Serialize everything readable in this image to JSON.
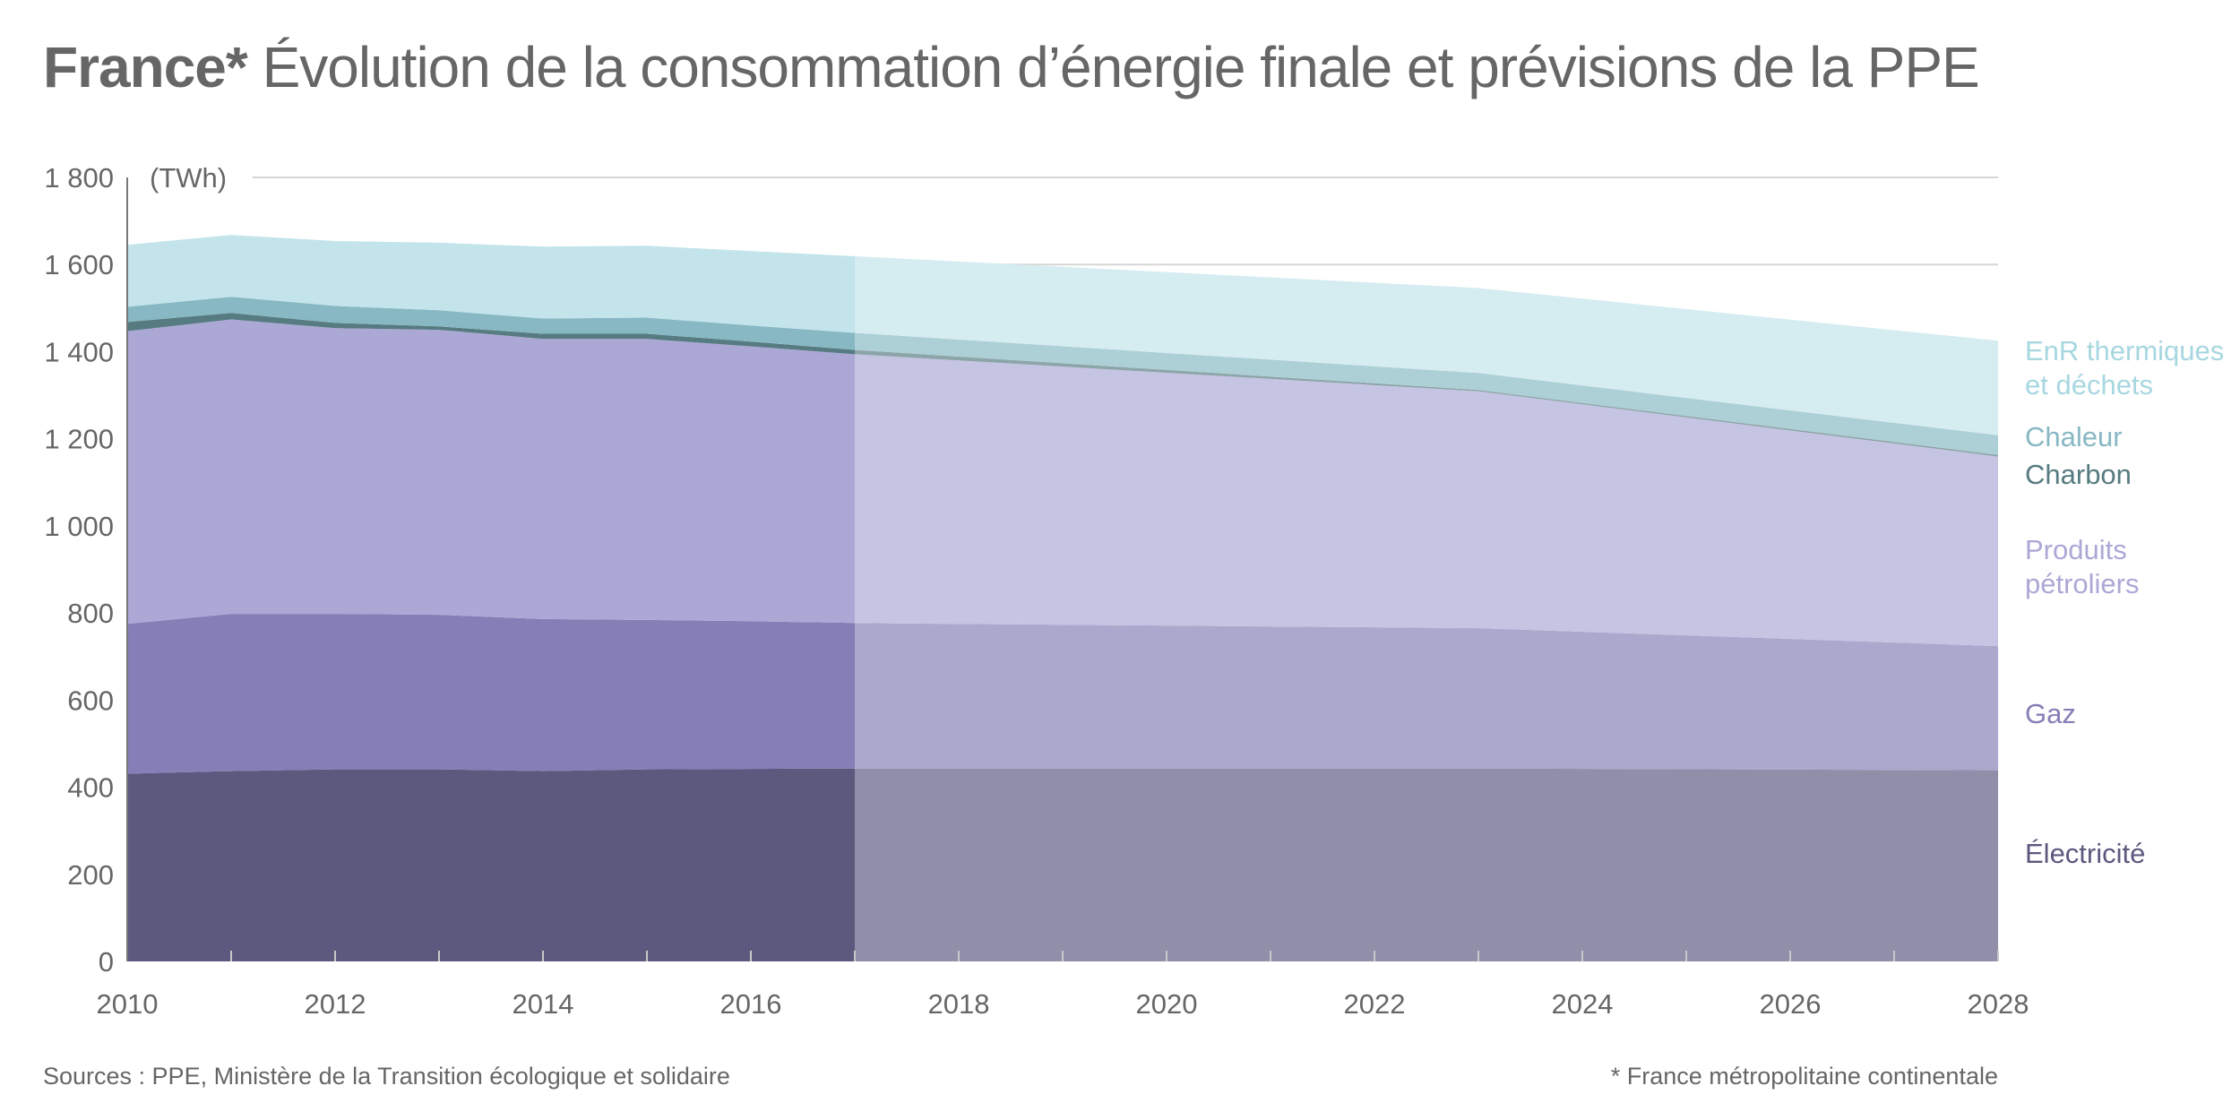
{
  "header": {
    "country": "France*",
    "title": "Évolution de la consommation d’énergie finale et prévisions de la PPE"
  },
  "footer": {
    "sources": "Sources : PPE, Ministère de la Transition écologique et solidaire",
    "note": "* France métropolitaine continentale"
  },
  "chart_data": {
    "type": "area",
    "stacked": true,
    "title": "France* Évolution de la consommation d’énergie finale et prévisions de la PPE",
    "xlabel": "",
    "ylabel": "(TWh)",
    "xlim": [
      2010,
      2028
    ],
    "ylim": [
      0,
      1800
    ],
    "x_ticks": [
      2010,
      2012,
      2014,
      2016,
      2018,
      2020,
      2022,
      2024,
      2026,
      2028
    ],
    "x_tick_labels": [
      "2010",
      "2012",
      "2014",
      "2016",
      "2018",
      "2020",
      "2022",
      "2024",
      "2026",
      "2028"
    ],
    "y_ticks": [
      0,
      200,
      400,
      600,
      800,
      1000,
      1200,
      1400,
      1600,
      1800
    ],
    "y_tick_labels": [
      "0",
      "200",
      "400",
      "600",
      "800",
      "1 000",
      "1 200",
      "1 400",
      "1 600",
      "1 800"
    ],
    "grid": "horizontal (1600, 1800)",
    "forecast_start": 2017,
    "forecast_note": "Period 2017–2028 shown with lighter shading (PPE forecast)",
    "legend_placement": "right (labels at end of areas)",
    "x": [
      2010,
      2011,
      2012,
      2013,
      2014,
      2015,
      2016,
      2017,
      2023,
      2028
    ],
    "series": [
      {
        "name": "Électricité",
        "color": "#5c597f",
        "label_color": "#5c597f",
        "values": [
          431,
          437,
          441,
          441,
          437,
          441,
          442,
          443,
          443,
          439
        ]
      },
      {
        "name": "Gaz",
        "color": "#847fb6",
        "label_color": "#847fb6",
        "values": [
          344,
          361,
          357,
          355,
          349,
          343,
          339,
          334,
          322,
          285
        ]
      },
      {
        "name": "Produits pétroliers",
        "color": "#aba8d6",
        "label_color": "#aba8d6",
        "values": [
          672,
          676,
          656,
          654,
          643,
          645,
          631,
          617,
          544,
          435
        ]
      },
      {
        "name": "Charbon",
        "color": "#567b80",
        "label_color": "#567b80",
        "values": [
          21,
          15,
          12,
          8,
          12,
          12,
          11,
          10,
          3,
          4
        ]
      },
      {
        "name": "Chaleur",
        "color": "#87b8c3",
        "label_color": "#87b8c3",
        "values": [
          35,
          37,
          39,
          37,
          35,
          37,
          37,
          39,
          39,
          45
        ]
      },
      {
        "name": "EnR thermiques et déchets",
        "color": "#c2e4ea",
        "label_color": "#a7d7e0",
        "values": [
          142,
          142,
          149,
          155,
          165,
          165,
          171,
          176,
          195,
          217
        ]
      }
    ],
    "series_labels": [
      {
        "lines": [
          "EnR thermiques",
          "et déchets"
        ],
        "color": "#a7d7e0"
      },
      {
        "lines": [
          "Chaleur"
        ],
        "color": "#87b8c3"
      },
      {
        "lines": [
          "Charbon"
        ],
        "color": "#567b80"
      },
      {
        "lines": [
          "Produits",
          "pétroliers"
        ],
        "color": "#aba8d6"
      },
      {
        "lines": [
          "Gaz"
        ],
        "color": "#847fb6"
      },
      {
        "lines": [
          "Électricité"
        ],
        "color": "#5c597f"
      }
    ]
  }
}
